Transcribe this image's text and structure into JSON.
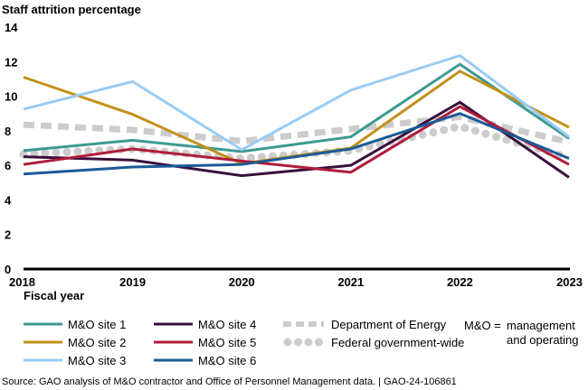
{
  "chart_data": {
    "type": "line",
    "title": "",
    "ylabel": "Staff attrition percentage",
    "xlabel": "Fiscal year",
    "x": [
      "2018",
      "2019",
      "2020",
      "2021",
      "2022",
      "2023"
    ],
    "ylim": [
      0,
      14
    ],
    "yticks": [
      "0",
      "2",
      "4",
      "6",
      "8",
      "10",
      "12",
      "14"
    ],
    "grid": false,
    "legend_position": "bottom",
    "series": [
      {
        "name": "M&O site 1",
        "color": "#3d9a90",
        "style": "solid",
        "values": [
          6.85,
          7.45,
          6.8,
          7.65,
          11.85,
          7.55
        ]
      },
      {
        "name": "M&O site 2",
        "color": "#c2901a",
        "style": "solid",
        "values": [
          11.1,
          8.95,
          6.1,
          7.0,
          11.45,
          8.2
        ]
      },
      {
        "name": "M&O site 3",
        "color": "#99ccf5",
        "style": "solid",
        "values": [
          9.25,
          10.85,
          6.9,
          10.35,
          12.35,
          7.65
        ]
      },
      {
        "name": "M&O site 4",
        "color": "#3a0f3b",
        "style": "solid",
        "values": [
          6.5,
          6.3,
          5.4,
          6.0,
          9.65,
          5.3
        ]
      },
      {
        "name": "M&O site 5",
        "color": "#b01c3a",
        "style": "solid",
        "values": [
          6.05,
          6.95,
          6.25,
          5.6,
          9.4,
          6.05
        ]
      },
      {
        "name": "M&O site 6",
        "color": "#1a5a96",
        "style": "solid",
        "values": [
          5.5,
          5.9,
          6.05,
          6.95,
          9.0,
          6.4
        ]
      },
      {
        "name": "Department of Energy",
        "color": "#cccccc",
        "style": "dashed",
        "values": [
          8.35,
          8.05,
          7.4,
          8.1,
          8.8,
          7.35
        ]
      },
      {
        "name": "Federal government-wide",
        "color": "#cccccc",
        "style": "dotted",
        "values": [
          6.65,
          6.95,
          6.4,
          6.85,
          8.25,
          6.45
        ]
      }
    ]
  },
  "legend": {
    "abbrev_key": "M&O =",
    "abbrev_line1": "management",
    "abbrev_line2": "and operating"
  },
  "source": "Source: GAO analysis of M&O contractor and Office of Personnel Management data.  |  GAO-24-106861"
}
